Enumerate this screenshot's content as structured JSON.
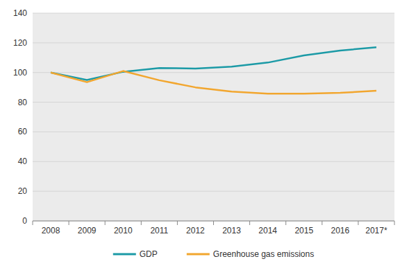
{
  "chart_data": {
    "type": "line",
    "categories": [
      "2008",
      "2009",
      "2010",
      "2011",
      "2012",
      "2013",
      "2014",
      "2015",
      "2016",
      "2017*"
    ],
    "series": [
      {
        "name": "GDP",
        "color": "#1b9aa6",
        "values": [
          100,
          95,
          100.5,
          103,
          102.7,
          104,
          106.7,
          111.5,
          114.8,
          117
        ]
      },
      {
        "name": "Greenhouse gas emissions",
        "color": "#f2a62e",
        "values": [
          100,
          93.5,
          101,
          94.8,
          90,
          87.2,
          85.8,
          85.8,
          86.3,
          87.7
        ]
      }
    ],
    "ylim": [
      0,
      140
    ],
    "yticks": [
      0,
      20,
      40,
      60,
      80,
      100,
      120,
      140
    ],
    "grid": true,
    "legend": "bottom"
  }
}
